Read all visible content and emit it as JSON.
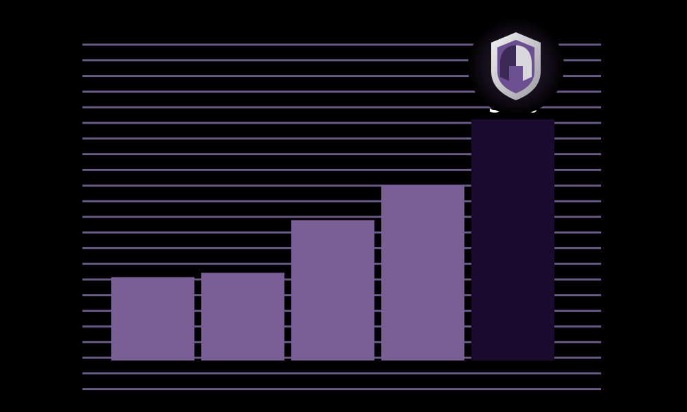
{
  "chart_data": {
    "type": "bar",
    "categories": [
      "",
      "",
      "",
      "",
      ""
    ],
    "values": [
      19,
      20,
      32,
      40,
      55
    ],
    "labels": [
      "",
      "",
      "",
      "",
      "55%"
    ],
    "highlight_index": 4,
    "ylim": [
      0,
      72
    ],
    "grid": true,
    "colors": {
      "bar": "#7a5f97",
      "highlight": "#1a0a2e",
      "grid": "#6a5a86",
      "background": "#000000",
      "label": "#ffffff"
    },
    "logo": {
      "icon": "spartan-helmet-shield-icon"
    }
  }
}
